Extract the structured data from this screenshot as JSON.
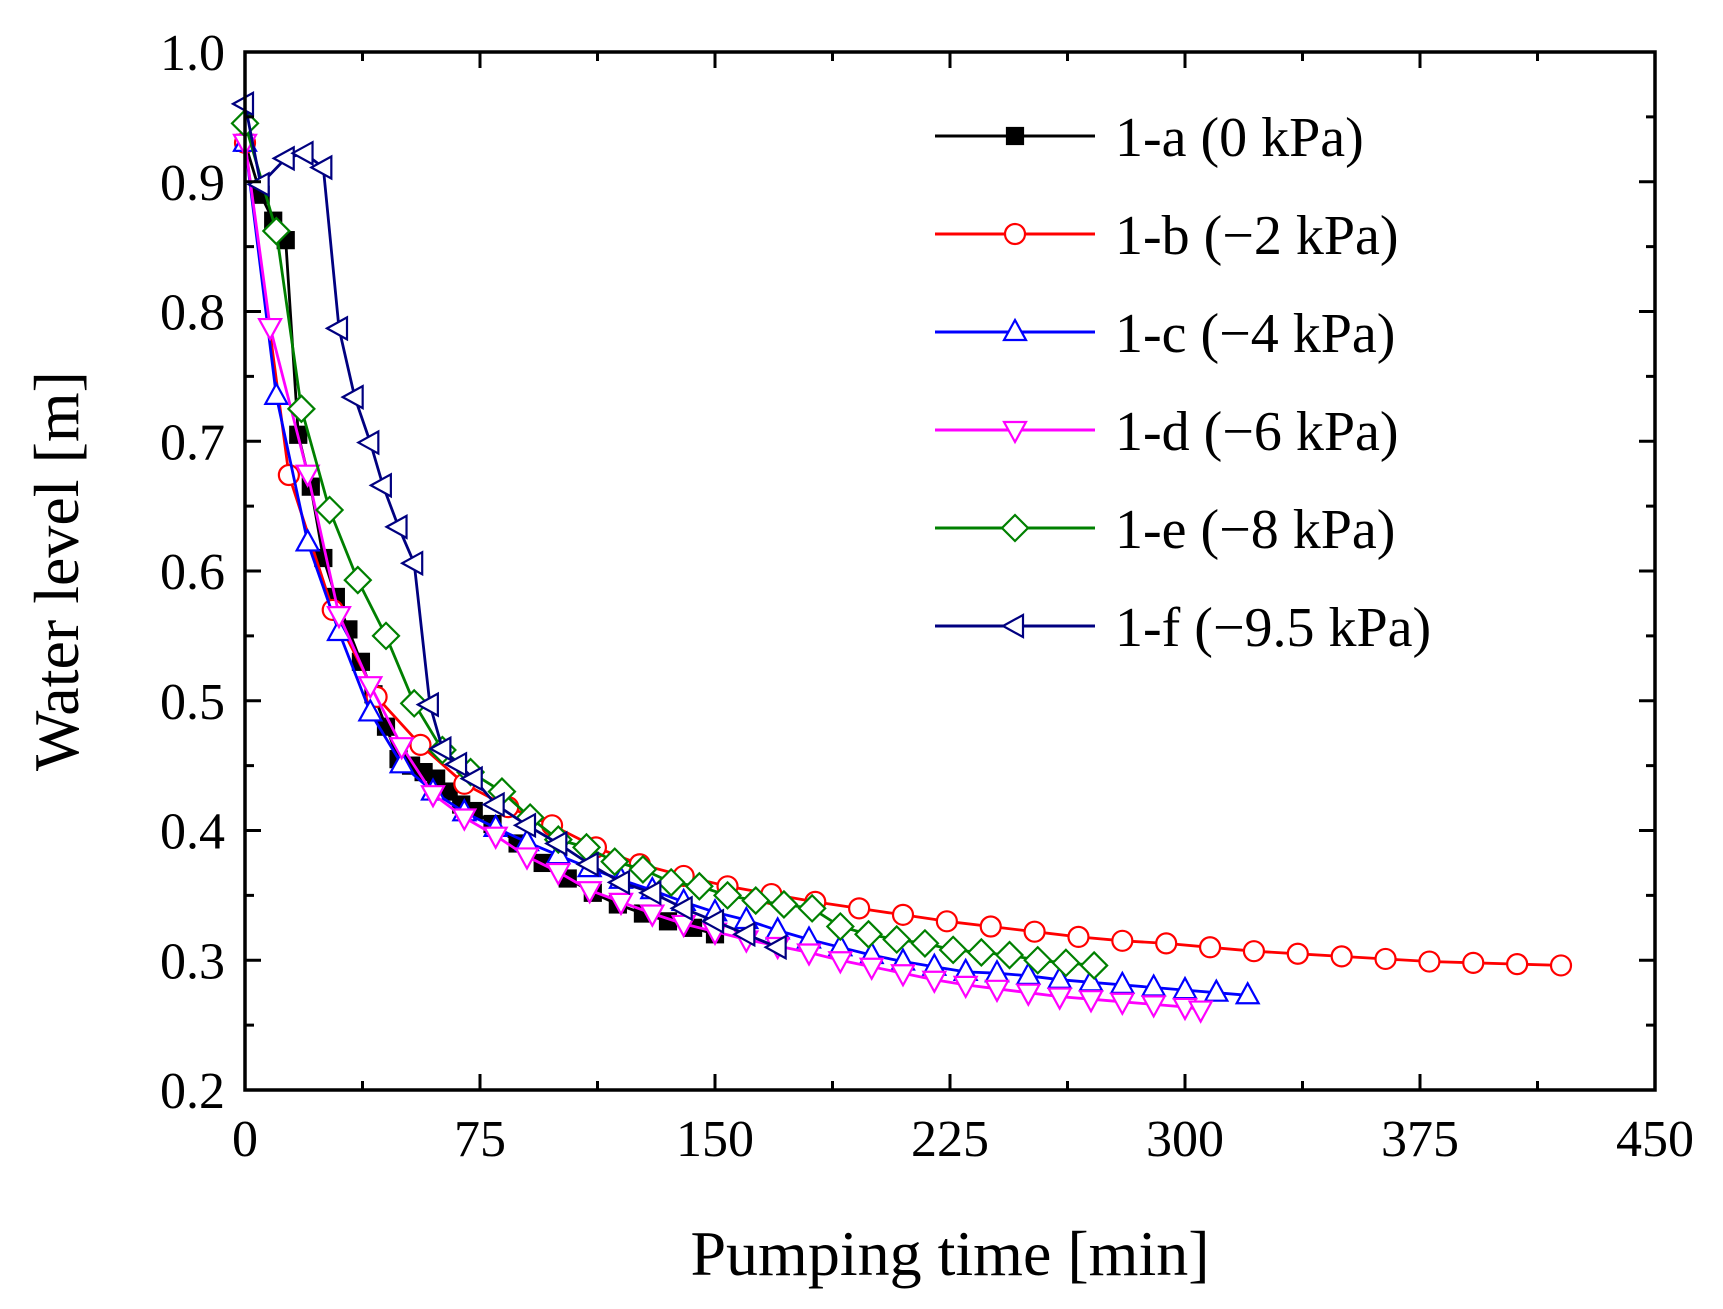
{
  "chart_data": {
    "type": "line",
    "title": "",
    "xlabel": "Pumping time [min]",
    "ylabel": "Water level [m]",
    "xlim": [
      0,
      450
    ],
    "ylim": [
      0.2,
      1.0
    ],
    "xticks": [
      0,
      75,
      150,
      225,
      300,
      375,
      450
    ],
    "yticks": [
      0.2,
      0.3,
      0.4,
      0.5,
      0.6,
      0.7,
      0.8,
      0.9,
      1.0
    ],
    "xtick_labels": [
      "0",
      "75",
      "150",
      "225",
      "300",
      "375",
      "450"
    ],
    "ytick_labels": [
      "0.2",
      "0.3",
      "0.4",
      "0.5",
      "0.6",
      "0.7",
      "0.8",
      "0.9",
      "1.0"
    ],
    "grid": false,
    "legend_position": "top-right",
    "series": [
      {
        "name": "1-a (0 kPa)",
        "color": "#000000",
        "marker": "square",
        "filled": true,
        "x": [
          0,
          5,
          9,
          13,
          17,
          21,
          25,
          29,
          33,
          37,
          41,
          45,
          49,
          53,
          57,
          61,
          65,
          69,
          73,
          79,
          87,
          95,
          103,
          111,
          119,
          127,
          135,
          143,
          150
        ],
        "y": [
          0.93,
          0.89,
          0.87,
          0.855,
          0.705,
          0.665,
          0.61,
          0.58,
          0.555,
          0.53,
          0.505,
          0.48,
          0.455,
          0.45,
          0.445,
          0.44,
          0.43,
          0.42,
          0.415,
          0.405,
          0.39,
          0.375,
          0.363,
          0.352,
          0.343,
          0.336,
          0.33,
          0.325,
          0.32
        ]
      },
      {
        "name": "1-b (−2 kPa)",
        "color": "#ff0000",
        "marker": "circle",
        "filled": false,
        "x": [
          0,
          14,
          28,
          42,
          56,
          70,
          84,
          98,
          112,
          126,
          140,
          154,
          168,
          182,
          196,
          210,
          224,
          238,
          252,
          266,
          280,
          294,
          308,
          322,
          336,
          350,
          364,
          378,
          392,
          406,
          420
        ],
        "y": [
          0.93,
          0.674,
          0.57,
          0.503,
          0.466,
          0.436,
          0.418,
          0.404,
          0.387,
          0.374,
          0.365,
          0.357,
          0.351,
          0.345,
          0.34,
          0.335,
          0.33,
          0.326,
          0.322,
          0.318,
          0.315,
          0.313,
          0.31,
          0.307,
          0.305,
          0.303,
          0.301,
          0.299,
          0.298,
          0.297,
          0.296
        ]
      },
      {
        "name": "1-c (−4 kPa)",
        "color": "#0000ff",
        "marker": "triangle-up",
        "filled": false,
        "x": [
          0,
          10,
          20,
          30,
          40,
          50,
          60,
          70,
          80,
          90,
          100,
          110,
          120,
          130,
          140,
          150,
          160,
          170,
          180,
          190,
          200,
          210,
          220,
          230,
          240,
          250,
          260,
          270,
          280,
          290,
          300,
          310,
          320
        ],
        "y": [
          0.93,
          0.735,
          0.622,
          0.553,
          0.491,
          0.451,
          0.43,
          0.414,
          0.402,
          0.391,
          0.381,
          0.371,
          0.362,
          0.354,
          0.345,
          0.337,
          0.331,
          0.323,
          0.316,
          0.31,
          0.304,
          0.299,
          0.295,
          0.291,
          0.29,
          0.288,
          0.285,
          0.283,
          0.281,
          0.279,
          0.277,
          0.275,
          0.273
        ]
      },
      {
        "name": "1-d (−6 kPa)",
        "color": "#ff00ff",
        "marker": "triangle-down",
        "filled": false,
        "x": [
          0,
          8,
          20,
          30,
          40,
          50,
          60,
          70,
          80,
          90,
          100,
          110,
          120,
          130,
          140,
          150,
          160,
          170,
          180,
          190,
          200,
          210,
          220,
          230,
          240,
          250,
          260,
          270,
          280,
          290,
          300,
          305
        ],
        "y": [
          0.93,
          0.788,
          0.675,
          0.566,
          0.512,
          0.465,
          0.428,
          0.41,
          0.396,
          0.38,
          0.368,
          0.354,
          0.345,
          0.336,
          0.328,
          0.322,
          0.316,
          0.311,
          0.306,
          0.3,
          0.295,
          0.29,
          0.285,
          0.281,
          0.278,
          0.275,
          0.272,
          0.27,
          0.268,
          0.266,
          0.264,
          0.262
        ]
      },
      {
        "name": "1-e (−8 kPa)",
        "color": "#008000",
        "marker": "diamond",
        "filled": false,
        "x": [
          0,
          10,
          18,
          27,
          36,
          45,
          54,
          63,
          72,
          82,
          91,
          100,
          109,
          118,
          127,
          136,
          145,
          154,
          163,
          172,
          181,
          190,
          199,
          208,
          217,
          226,
          235,
          244,
          253,
          262,
          271
        ],
        "y": [
          0.945,
          0.862,
          0.725,
          0.647,
          0.593,
          0.55,
          0.498,
          0.462,
          0.445,
          0.43,
          0.41,
          0.393,
          0.387,
          0.376,
          0.37,
          0.36,
          0.357,
          0.35,
          0.346,
          0.343,
          0.34,
          0.326,
          0.32,
          0.316,
          0.313,
          0.308,
          0.306,
          0.304,
          0.3,
          0.298,
          0.296
        ]
      },
      {
        "name": "1-f (−9.5 kPa)",
        "color": "#000080",
        "marker": "triangle-left",
        "filled": false,
        "x": [
          0,
          5,
          13,
          19,
          25,
          30,
          35,
          40,
          44,
          49,
          54,
          59,
          63,
          68,
          73,
          80,
          90,
          100,
          110,
          120,
          130,
          140,
          150,
          160,
          170
        ],
        "y": [
          0.96,
          0.898,
          0.918,
          0.922,
          0.911,
          0.787,
          0.734,
          0.699,
          0.666,
          0.634,
          0.606,
          0.497,
          0.463,
          0.451,
          0.44,
          0.42,
          0.404,
          0.39,
          0.374,
          0.36,
          0.352,
          0.34,
          0.33,
          0.32,
          0.31
        ]
      }
    ]
  }
}
